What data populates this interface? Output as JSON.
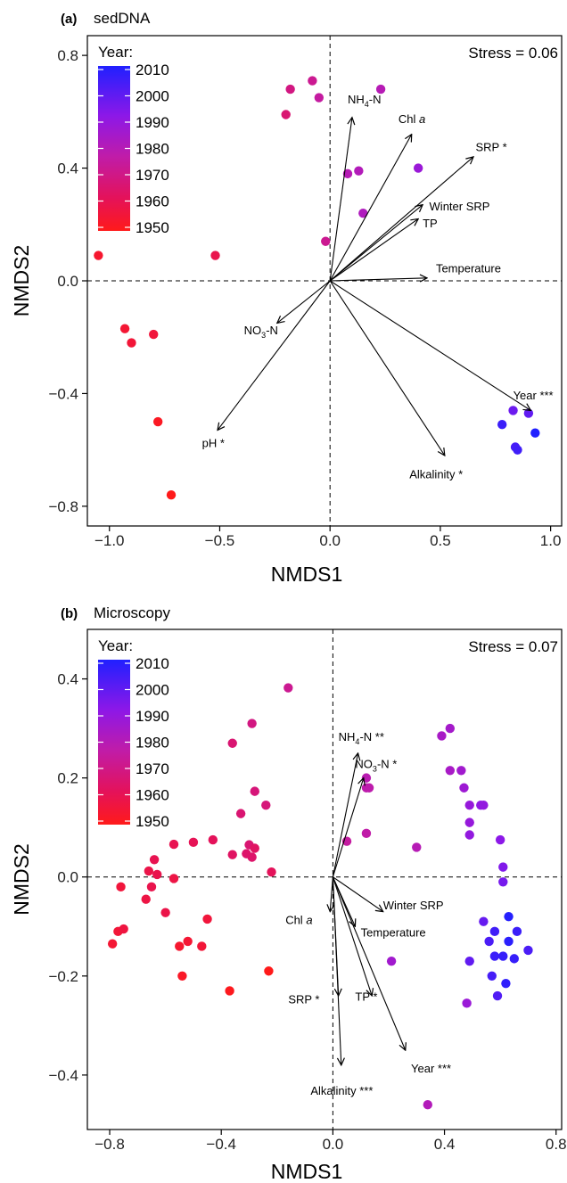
{
  "chart_data": [
    {
      "type": "scatter",
      "panel": "(a)",
      "title": "sedDNA",
      "xlabel": "NMDS1",
      "ylabel": "NMDS2",
      "xlim": [
        -1.1,
        1.05
      ],
      "ylim": [
        -0.87,
        0.87
      ],
      "xticks": [
        -1.0,
        -0.5,
        0.0,
        0.5,
        1.0
      ],
      "xtick_labels": [
        "−1.0",
        "−0.5",
        "0.0",
        "0.5",
        "1.0"
      ],
      "yticks": [
        -0.8,
        -0.4,
        0.0,
        0.4,
        0.8
      ],
      "ytick_labels": [
        "−0.8",
        "−0.4",
        "0.0",
        "0.4",
        "0.8"
      ],
      "stress": "Stress = 0.06",
      "legend": {
        "title": "Year:",
        "labels": [
          "2010",
          "2000",
          "1990",
          "1980",
          "1970",
          "1960",
          "1950"
        ],
        "placement": "top-left"
      },
      "points": [
        {
          "x": -1.05,
          "y": 0.09,
          "year": 1955
        },
        {
          "x": -0.93,
          "y": -0.17,
          "year": 1956
        },
        {
          "x": -0.9,
          "y": -0.22,
          "year": 1957
        },
        {
          "x": -0.8,
          "y": -0.19,
          "year": 1958
        },
        {
          "x": -0.78,
          "y": -0.5,
          "year": 1952
        },
        {
          "x": -0.72,
          "y": -0.76,
          "year": 1950
        },
        {
          "x": -0.52,
          "y": 0.09,
          "year": 1962
        },
        {
          "x": -0.2,
          "y": 0.59,
          "year": 1968
        },
        {
          "x": -0.18,
          "y": 0.68,
          "year": 1970
        },
        {
          "x": -0.08,
          "y": 0.71,
          "year": 1972
        },
        {
          "x": -0.05,
          "y": 0.65,
          "year": 1974
        },
        {
          "x": -0.02,
          "y": 0.14,
          "year": 1972
        },
        {
          "x": 0.08,
          "y": 0.38,
          "year": 1978
        },
        {
          "x": 0.13,
          "y": 0.39,
          "year": 1979
        },
        {
          "x": 0.15,
          "y": 0.24,
          "year": 1980
        },
        {
          "x": 0.23,
          "y": 0.68,
          "year": 1978
        },
        {
          "x": 0.4,
          "y": 0.4,
          "year": 1986
        },
        {
          "x": 0.78,
          "y": -0.51,
          "year": 2005
        },
        {
          "x": 0.83,
          "y": -0.46,
          "year": 1996
        },
        {
          "x": 0.84,
          "y": -0.59,
          "year": 2003
        },
        {
          "x": 0.85,
          "y": -0.6,
          "year": 2004
        },
        {
          "x": 0.9,
          "y": -0.47,
          "year": 1998
        },
        {
          "x": 0.93,
          "y": -0.54,
          "year": 2010
        }
      ],
      "vectors": [
        {
          "label_html": "NH<tspan font-size='9' dy='4'>4</tspan><tspan dy='-4'>-N</tspan>",
          "label": "NH4-N",
          "x": 0.1,
          "y": 0.58,
          "lx": 0.08,
          "ly": 0.63,
          "anchor": "start"
        },
        {
          "label_html": "Chl <tspan font-style='italic'>a</tspan>",
          "label": "Chl a",
          "x": 0.37,
          "y": 0.52,
          "lx": 0.31,
          "ly": 0.56,
          "anchor": "start"
        },
        {
          "label_html": "SRP *",
          "label": "SRP *",
          "x": 0.65,
          "y": 0.44,
          "lx": 0.66,
          "ly": 0.46,
          "anchor": "start"
        },
        {
          "label_html": "Winter SRP",
          "label": "Winter SRP",
          "x": 0.42,
          "y": 0.27,
          "lx": 0.45,
          "ly": 0.25,
          "anchor": "start"
        },
        {
          "label_html": "TP",
          "label": "TP",
          "x": 0.4,
          "y": 0.22,
          "lx": 0.42,
          "ly": 0.19,
          "anchor": "start"
        },
        {
          "label_html": "Temperature",
          "label": "Temperature",
          "x": 0.44,
          "y": 0.01,
          "lx": 0.48,
          "ly": 0.03,
          "anchor": "start"
        },
        {
          "label_html": "NO<tspan font-size='9' dy='4'>3</tspan><tspan dy='-4'>-N</tspan>",
          "label": "NO3-N",
          "x": -0.24,
          "y": -0.15,
          "lx": -0.39,
          "ly": -0.19,
          "anchor": "start"
        },
        {
          "label_html": "pH *",
          "label": "pH *",
          "x": -0.51,
          "y": -0.53,
          "lx": -0.58,
          "ly": -0.59,
          "anchor": "start"
        },
        {
          "label_html": "Alkalinity *",
          "label": "Alkalinity *",
          "x": 0.52,
          "y": -0.62,
          "lx": 0.36,
          "ly": -0.7,
          "anchor": "start"
        },
        {
          "label_html": "Year ***",
          "label": "Year ***",
          "x": 0.91,
          "y": -0.46,
          "lx": 0.83,
          "ly": -0.42,
          "anchor": "start"
        }
      ]
    },
    {
      "type": "scatter",
      "panel": "(b)",
      "title": "Microscopy",
      "xlabel": "NMDS1",
      "ylabel": "NMDS2",
      "xlim": [
        -0.88,
        0.82
      ],
      "ylim": [
        -0.51,
        0.5
      ],
      "xticks": [
        -0.8,
        -0.4,
        0.0,
        0.4,
        0.8
      ],
      "xtick_labels": [
        "−0.8",
        "−0.4",
        "0.0",
        "0.4",
        "0.8"
      ],
      "yticks": [
        -0.4,
        -0.2,
        0.0,
        0.2,
        0.4
      ],
      "ytick_labels": [
        "−0.4",
        "−0.2",
        "0.0",
        "0.2",
        "0.4"
      ],
      "stress": "Stress = 0.07",
      "legend": {
        "title": "Year:",
        "labels": [
          "2010",
          "2000",
          "1990",
          "1980",
          "1970",
          "1960",
          "1950"
        ],
        "placement": "top-left"
      },
      "points": [
        {
          "x": -0.79,
          "y": -0.135,
          "year": 1956
        },
        {
          "x": -0.77,
          "y": -0.11,
          "year": 1957
        },
        {
          "x": -0.76,
          "y": -0.02,
          "year": 1958
        },
        {
          "x": -0.75,
          "y": -0.105,
          "year": 1959
        },
        {
          "x": -0.67,
          "y": -0.045,
          "year": 1960
        },
        {
          "x": -0.66,
          "y": 0.012,
          "year": 1961
        },
        {
          "x": -0.65,
          "y": -0.02,
          "year": 1962
        },
        {
          "x": -0.64,
          "y": 0.035,
          "year": 1963
        },
        {
          "x": -0.63,
          "y": 0.005,
          "year": 1962
        },
        {
          "x": -0.6,
          "y": -0.072,
          "year": 1961
        },
        {
          "x": -0.57,
          "y": 0.066,
          "year": 1963
        },
        {
          "x": -0.57,
          "y": -0.003,
          "year": 1960
        },
        {
          "x": -0.55,
          "y": -0.14,
          "year": 1955
        },
        {
          "x": -0.54,
          "y": -0.2,
          "year": 1953
        },
        {
          "x": -0.52,
          "y": -0.13,
          "year": 1956
        },
        {
          "x": -0.5,
          "y": 0.07,
          "year": 1964
        },
        {
          "x": -0.47,
          "y": -0.14,
          "year": 1957
        },
        {
          "x": -0.45,
          "y": -0.085,
          "year": 1958
        },
        {
          "x": -0.43,
          "y": 0.075,
          "year": 1965
        },
        {
          "x": -0.37,
          "y": -0.23,
          "year": 1951
        },
        {
          "x": -0.36,
          "y": 0.045,
          "year": 1966
        },
        {
          "x": -0.36,
          "y": 0.27,
          "year": 1968
        },
        {
          "x": -0.33,
          "y": 0.128,
          "year": 1968
        },
        {
          "x": -0.31,
          "y": 0.047,
          "year": 1967
        },
        {
          "x": -0.3,
          "y": 0.065,
          "year": 1968
        },
        {
          "x": -0.29,
          "y": 0.04,
          "year": 1967
        },
        {
          "x": -0.29,
          "y": 0.31,
          "year": 1970
        },
        {
          "x": -0.28,
          "y": 0.173,
          "year": 1969
        },
        {
          "x": -0.28,
          "y": 0.058,
          "year": 1966
        },
        {
          "x": -0.24,
          "y": 0.145,
          "year": 1969
        },
        {
          "x": -0.23,
          "y": -0.19,
          "year": 1950
        },
        {
          "x": -0.22,
          "y": 0.01,
          "year": 1965
        },
        {
          "x": -0.16,
          "y": 0.382,
          "year": 1972
        },
        {
          "x": 0.05,
          "y": 0.072,
          "year": 1974
        },
        {
          "x": 0.12,
          "y": 0.18,
          "year": 1976
        },
        {
          "x": 0.12,
          "y": 0.2,
          "year": 1977
        },
        {
          "x": 0.12,
          "y": 0.088,
          "year": 1975
        },
        {
          "x": 0.13,
          "y": 0.18,
          "year": 1976
        },
        {
          "x": 0.21,
          "y": -0.17,
          "year": 1984
        },
        {
          "x": 0.3,
          "y": 0.06,
          "year": 1978
        },
        {
          "x": 0.34,
          "y": -0.46,
          "year": 1979
        },
        {
          "x": 0.39,
          "y": 0.285,
          "year": 1982
        },
        {
          "x": 0.42,
          "y": 0.3,
          "year": 1983
        },
        {
          "x": 0.42,
          "y": 0.215,
          "year": 1982
        },
        {
          "x": 0.46,
          "y": 0.215,
          "year": 1984
        },
        {
          "x": 0.47,
          "y": 0.18,
          "year": 1985
        },
        {
          "x": 0.48,
          "y": -0.255,
          "year": 1986
        },
        {
          "x": 0.49,
          "y": 0.11,
          "year": 1987
        },
        {
          "x": 0.49,
          "y": 0.145,
          "year": 1987
        },
        {
          "x": 0.49,
          "y": 0.085,
          "year": 1988
        },
        {
          "x": 0.49,
          "y": -0.17,
          "year": 1998
        },
        {
          "x": 0.53,
          "y": 0.145,
          "year": 1989
        },
        {
          "x": 0.54,
          "y": 0.145,
          "year": 1988
        },
        {
          "x": 0.54,
          "y": -0.09,
          "year": 1997
        },
        {
          "x": 0.56,
          "y": -0.13,
          "year": 2002
        },
        {
          "x": 0.57,
          "y": -0.2,
          "year": 2003
        },
        {
          "x": 0.58,
          "y": -0.11,
          "year": 2004
        },
        {
          "x": 0.58,
          "y": -0.16,
          "year": 2005
        },
        {
          "x": 0.59,
          "y": -0.24,
          "year": 2001
        },
        {
          "x": 0.6,
          "y": 0.075,
          "year": 1990
        },
        {
          "x": 0.61,
          "y": 0.02,
          "year": 1992
        },
        {
          "x": 0.61,
          "y": -0.01,
          "year": 1994
        },
        {
          "x": 0.61,
          "y": -0.16,
          "year": 2006
        },
        {
          "x": 0.62,
          "y": -0.215,
          "year": 2007
        },
        {
          "x": 0.63,
          "y": -0.08,
          "year": 2009
        },
        {
          "x": 0.63,
          "y": -0.13,
          "year": 2008
        },
        {
          "x": 0.65,
          "y": -0.165,
          "year": 2006
        },
        {
          "x": 0.66,
          "y": -0.11,
          "year": 2005
        },
        {
          "x": 0.7,
          "y": -0.148,
          "year": 2002
        }
      ],
      "vectors": [
        {
          "label_html": "NH<tspan font-size='9' dy='4'>4</tspan><tspan dy='-4'>-N **</tspan>",
          "label": "NH4-N **",
          "x": 0.09,
          "y": 0.25,
          "lx": 0.02,
          "ly": 0.275,
          "anchor": "start"
        },
        {
          "label_html": "NO<tspan font-size='9' dy='4'>3</tspan><tspan dy='-4'>-N *</tspan>",
          "label": "NO3-N *",
          "x": 0.11,
          "y": 0.2,
          "lx": 0.08,
          "ly": 0.22,
          "anchor": "start"
        },
        {
          "label_html": "Winter SRP",
          "label": "Winter SRP",
          "x": 0.18,
          "y": -0.07,
          "lx": 0.18,
          "ly": -0.065,
          "anchor": "start"
        },
        {
          "label_html": "Temperature",
          "label": "Temperature",
          "x": 0.08,
          "y": -0.1,
          "lx": 0.1,
          "ly": -0.12,
          "anchor": "start"
        },
        {
          "label_html": "Chl <tspan font-style='italic'>a</tspan>",
          "label": "Chl a",
          "x": -0.01,
          "y": -0.07,
          "lx": -0.17,
          "ly": -0.095,
          "anchor": "start"
        },
        {
          "label_html": "TP *",
          "label": "TP *",
          "x": 0.14,
          "y": -0.24,
          "lx": 0.08,
          "ly": -0.25,
          "anchor": "start"
        },
        {
          "label_html": "SRP *",
          "label": "SRP *",
          "x": 0.02,
          "y": -0.24,
          "lx": -0.16,
          "ly": -0.255,
          "anchor": "start"
        },
        {
          "label_html": "Year ***",
          "label": "Year ***",
          "x": 0.26,
          "y": -0.35,
          "lx": 0.28,
          "ly": -0.395,
          "anchor": "start"
        },
        {
          "label_html": "Alkalinity ***",
          "label": "Alkalinity ***",
          "x": 0.03,
          "y": -0.38,
          "lx": -0.08,
          "ly": -0.44,
          "anchor": "start"
        }
      ]
    }
  ]
}
